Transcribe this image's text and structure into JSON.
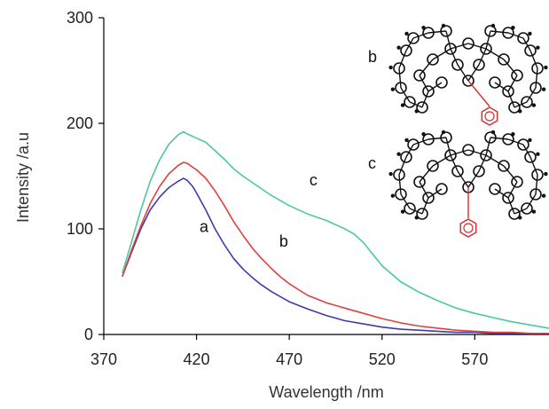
{
  "chart_data": {
    "type": "line",
    "title": "",
    "xlabel": "Wavelength /nm",
    "ylabel": "Intensity /a.u",
    "xlim": [
      370,
      610
    ],
    "ylim": [
      0,
      300
    ],
    "xticks": [
      370,
      420,
      470,
      520,
      570
    ],
    "yticks": [
      0,
      100,
      200,
      300
    ],
    "grid": false,
    "legend": "none",
    "series": [
      {
        "label": "a",
        "color": "#3c3caa",
        "x": [
          380,
          385,
          390,
          395,
          400,
          405,
          410,
          413,
          415,
          418,
          420,
          425,
          430,
          435,
          440,
          445,
          450,
          455,
          460,
          465,
          470,
          480,
          490,
          500,
          510,
          520,
          530,
          540,
          550,
          560,
          570,
          580,
          590,
          600,
          610
        ],
        "y": [
          55,
          78,
          100,
          118,
          130,
          139,
          145,
          148,
          146,
          140,
          134,
          118,
          100,
          85,
          72,
          62,
          54,
          47,
          41,
          36,
          31,
          24,
          18,
          13,
          10,
          7,
          5,
          4,
          3,
          2,
          2,
          1,
          1,
          1,
          1
        ]
      },
      {
        "label": "b",
        "color": "#e04040",
        "x": [
          380,
          385,
          390,
          395,
          400,
          405,
          410,
          413,
          415,
          420,
          425,
          430,
          435,
          440,
          445,
          450,
          455,
          460,
          465,
          470,
          480,
          490,
          500,
          510,
          520,
          530,
          540,
          550,
          560,
          570,
          580,
          590,
          600,
          610
        ],
        "y": [
          55,
          80,
          103,
          124,
          140,
          152,
          160,
          163,
          162,
          156,
          148,
          136,
          122,
          107,
          94,
          82,
          72,
          63,
          55,
          48,
          37,
          30,
          25,
          20,
          15,
          11,
          8,
          6,
          4,
          3,
          2,
          2,
          1,
          1
        ]
      },
      {
        "label": "c",
        "color": "#4cc8a0",
        "x": [
          380,
          385,
          390,
          395,
          400,
          405,
          410,
          413,
          415,
          420,
          425,
          430,
          435,
          440,
          445,
          450,
          460,
          470,
          480,
          490,
          500,
          505,
          510,
          515,
          520,
          530,
          540,
          550,
          560,
          570,
          580,
          590,
          600,
          610
        ],
        "y": [
          58,
          88,
          118,
          145,
          165,
          180,
          189,
          192,
          190,
          186,
          182,
          174,
          166,
          157,
          150,
          144,
          132,
          122,
          114,
          108,
          100,
          95,
          87,
          76,
          65,
          50,
          40,
          32,
          25,
          20,
          16,
          12,
          9,
          6
        ]
      }
    ],
    "annotations": [
      {
        "text": "a",
        "x": 424,
        "y": 97
      },
      {
        "text": "b",
        "x": 467,
        "y": 83
      },
      {
        "text": "c",
        "x": 483,
        "y": 141
      }
    ],
    "inset_labels": [
      "b",
      "c"
    ]
  }
}
